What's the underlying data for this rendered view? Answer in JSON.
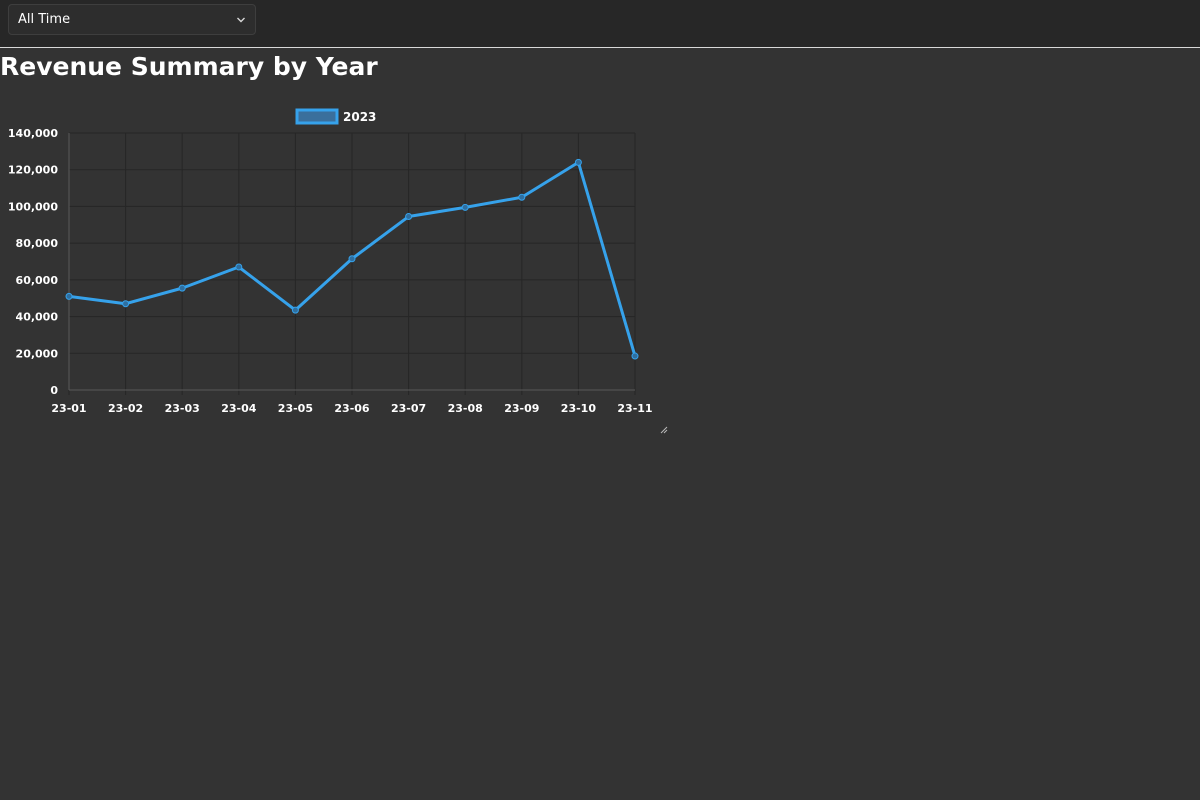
{
  "filter": {
    "selected": "All Time"
  },
  "page": {
    "title": "Revenue Summary by Year"
  },
  "colors": {
    "background": "#333333",
    "topbar": "#272727",
    "series": "#36a2eb",
    "grid": "#262626"
  },
  "chart_data": {
    "type": "line",
    "title": "",
    "xlabel": "",
    "ylabel": "",
    "categories": [
      "23-01",
      "23-02",
      "23-03",
      "23-04",
      "23-05",
      "23-06",
      "23-07",
      "23-08",
      "23-09",
      "23-10",
      "23-11"
    ],
    "series": [
      {
        "name": "2023",
        "values": [
          51000,
          47000,
          55500,
          67000,
          43500,
          71500,
          94500,
          99500,
          105000,
          124000,
          18500
        ]
      }
    ],
    "ylim": [
      0,
      140000
    ],
    "yticks": [
      0,
      20000,
      40000,
      60000,
      80000,
      100000,
      120000,
      140000
    ],
    "grid": true,
    "legend_position": "top-center"
  }
}
